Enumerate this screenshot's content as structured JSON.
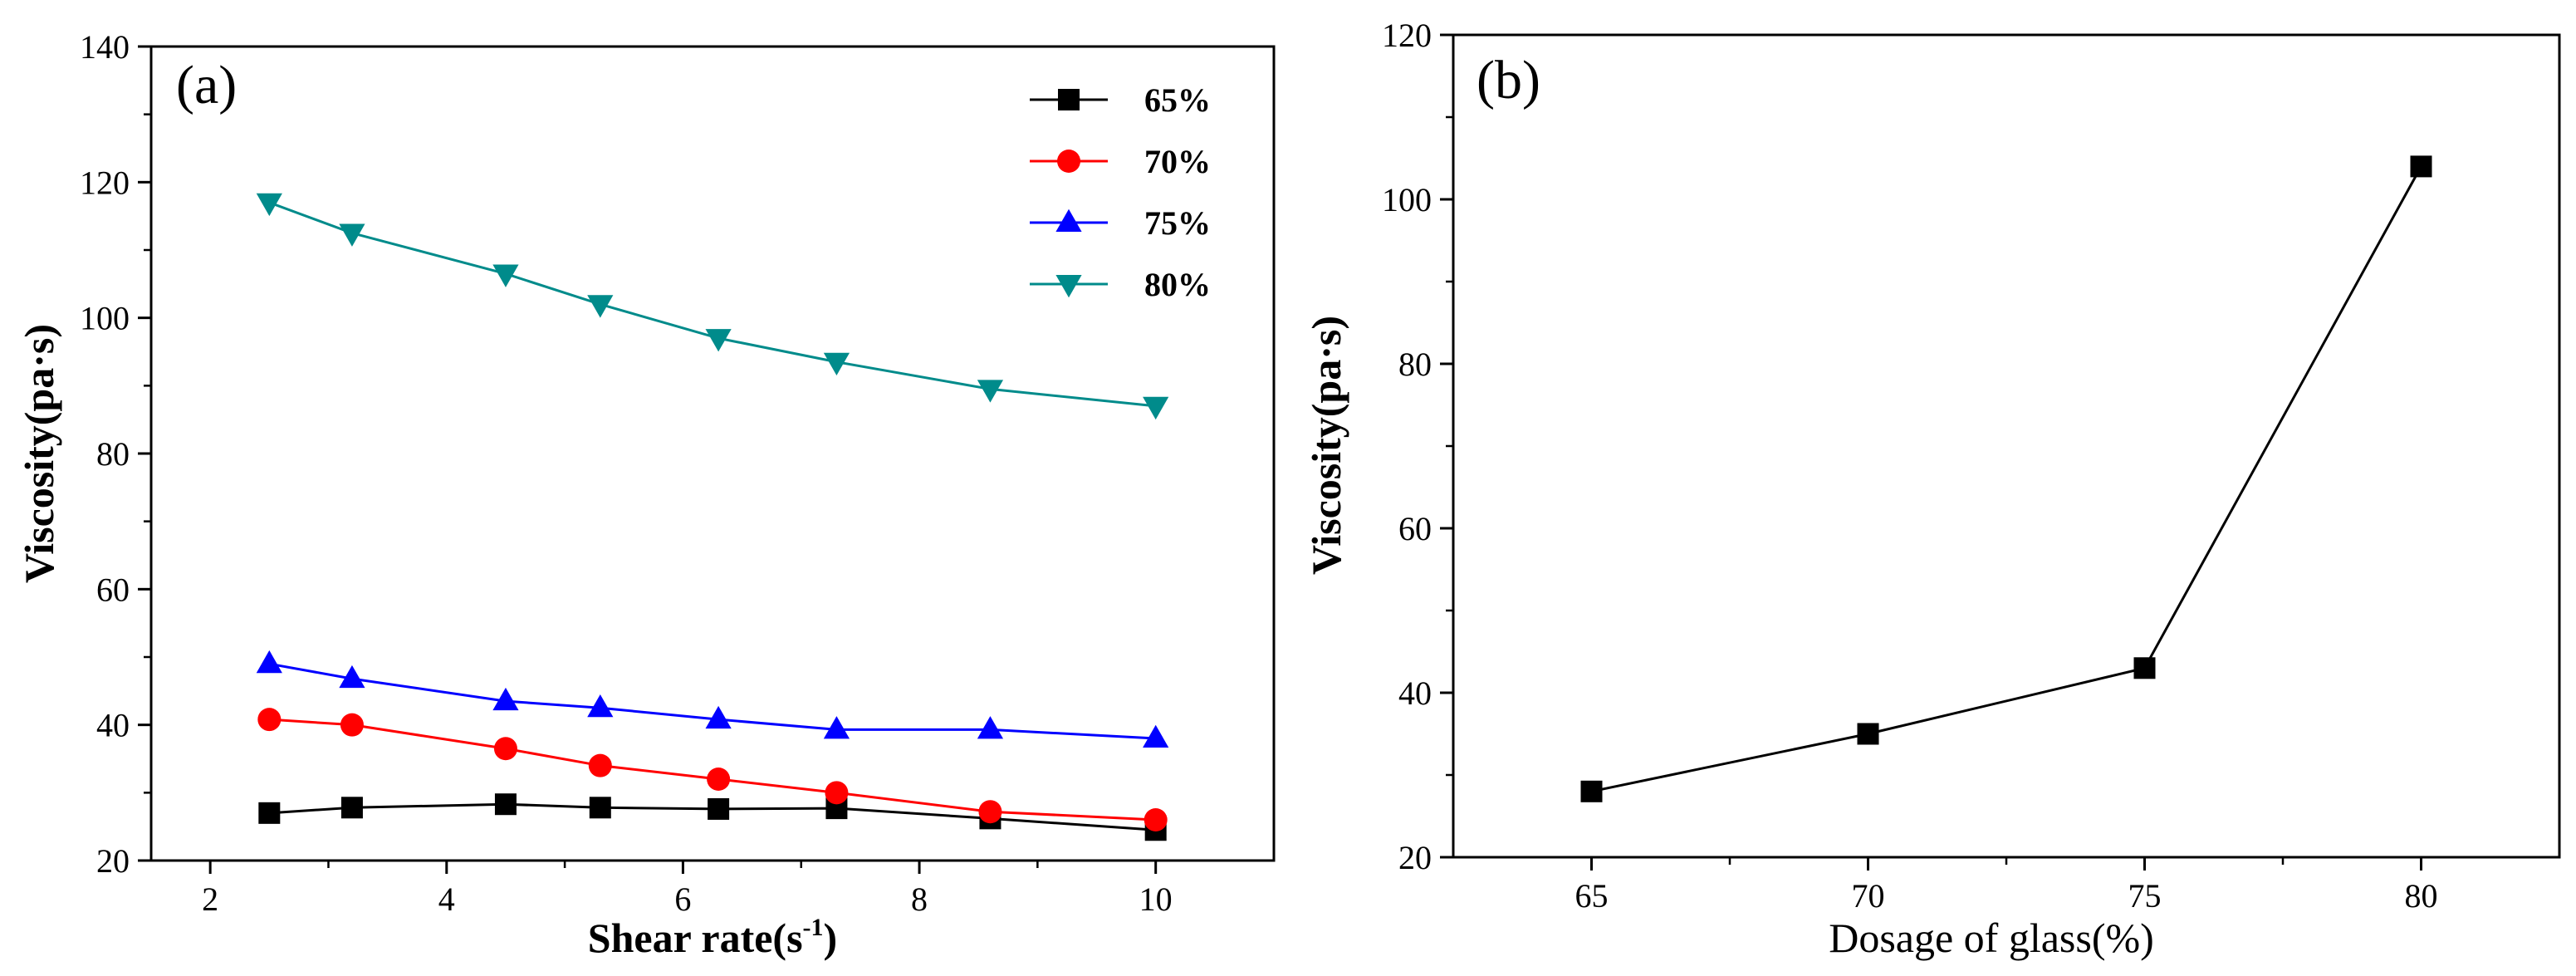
{
  "chart_data": [
    {
      "type": "line",
      "panel_label": "(a)",
      "xlabel": "Shear rate(s",
      "xlabel_sup": "-1",
      "xlabel_end": ")",
      "ylabel": "Viscosity(pa·s)",
      "xlim": [
        1.5,
        11.0
      ],
      "ylim": [
        20,
        140
      ],
      "xticks": [
        2,
        4,
        6,
        8,
        10
      ],
      "yticks": [
        20,
        40,
        60,
        80,
        100,
        120,
        140
      ],
      "legend_position": "top-right",
      "x": [
        2.5,
        3.2,
        4.5,
        5.3,
        6.3,
        7.3,
        8.6,
        10.0
      ],
      "series": [
        {
          "name": "65%",
          "color": "#000000",
          "marker": "square",
          "values": [
            27,
            27.8,
            28.3,
            27.8,
            27.6,
            27.7,
            26.2,
            24.5
          ]
        },
        {
          "name": "70%",
          "color": "#ff0000",
          "marker": "circle",
          "values": [
            40.8,
            40,
            36.5,
            34,
            32,
            30,
            27.2,
            26
          ]
        },
        {
          "name": "75%",
          "color": "#0000ff",
          "marker": "triangle-up",
          "values": [
            49,
            46.8,
            43.5,
            42.5,
            40.8,
            39.3,
            39.3,
            38
          ]
        },
        {
          "name": "80%",
          "color": "#008b8b",
          "marker": "triangle-down",
          "values": [
            117,
            112.5,
            106.5,
            102,
            97,
            93.5,
            89.5,
            87
          ]
        }
      ]
    },
    {
      "type": "line",
      "panel_label": "(b)",
      "xlabel": "Dosage of glass(%)",
      "ylabel": "Viscosity(pa·s)",
      "xlim": [
        62.5,
        82.5
      ],
      "ylim": [
        20,
        120
      ],
      "xticks": [
        65,
        70,
        75,
        80
      ],
      "yticks": [
        20,
        40,
        60,
        80,
        100,
        120
      ],
      "x": [
        65,
        70,
        75,
        80
      ],
      "series": [
        {
          "name": "Viscosity",
          "color": "#000000",
          "marker": "square",
          "values": [
            28,
            35,
            43,
            104
          ]
        }
      ]
    }
  ]
}
